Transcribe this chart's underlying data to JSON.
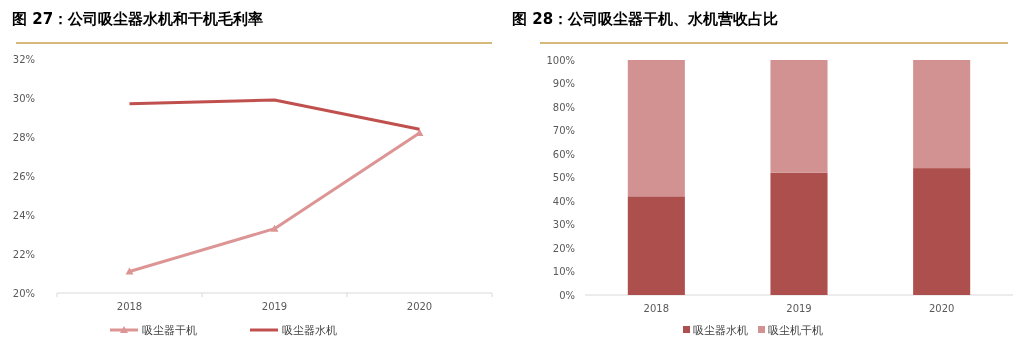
{
  "chart_data": [
    {
      "type": "line",
      "title": "图 27：公司吸尘器水机和干机毛利率",
      "categories": [
        "2018",
        "2019",
        "2020"
      ],
      "ylim": [
        20,
        32
      ],
      "yticks": [
        {
          "value": 20,
          "label": "20%"
        },
        {
          "value": 22,
          "label": "22%"
        },
        {
          "value": 24,
          "label": "24%"
        },
        {
          "value": 26,
          "label": "26%"
        },
        {
          "value": 28,
          "label": "28%"
        },
        {
          "value": 30,
          "label": "30%"
        },
        {
          "value": 32,
          "label": "32%"
        }
      ],
      "legend": "bottom",
      "series": [
        {
          "name": "吸尘器干机",
          "color": "#dc9594",
          "marker": "triangle",
          "values": [
            21.1,
            23.3,
            28.2
          ]
        },
        {
          "name": "吸尘器水机",
          "color": "#c0504d",
          "values": [
            29.7,
            29.9,
            28.4
          ]
        }
      ]
    },
    {
      "type": "bar",
      "stacked": true,
      "title": "图 28：公司吸尘器干机、水机营收占比",
      "categories": [
        "2018",
        "2019",
        "2020"
      ],
      "ylim": [
        0,
        100
      ],
      "yticks": [
        {
          "value": 0,
          "label": "0%"
        },
        {
          "value": 10,
          "label": "10%"
        },
        {
          "value": 20,
          "label": "20%"
        },
        {
          "value": 30,
          "label": "30%"
        },
        {
          "value": 40,
          "label": "40%"
        },
        {
          "value": 50,
          "label": "50%"
        },
        {
          "value": 60,
          "label": "60%"
        },
        {
          "value": 70,
          "label": "70%"
        },
        {
          "value": 80,
          "label": "80%"
        },
        {
          "value": 90,
          "label": "90%"
        },
        {
          "value": 100,
          "label": "100%"
        }
      ],
      "legend": "bottom",
      "series": [
        {
          "name": "吸尘器水机",
          "color": "#ad4f4d",
          "values": [
            42,
            52,
            54
          ]
        },
        {
          "name": "吸尘机干机",
          "color": "#d39292",
          "values": [
            58,
            48,
            46
          ]
        }
      ]
    }
  ]
}
